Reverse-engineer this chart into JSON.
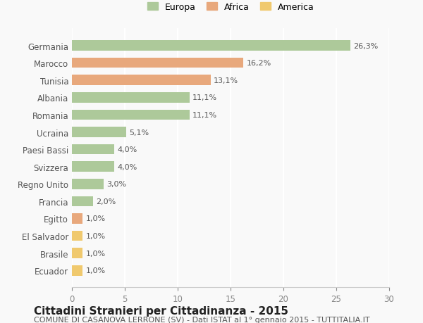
{
  "categories": [
    "Germania",
    "Marocco",
    "Tunisia",
    "Albania",
    "Romania",
    "Ucraina",
    "Paesi Bassi",
    "Svizzera",
    "Regno Unito",
    "Francia",
    "Egitto",
    "El Salvador",
    "Brasile",
    "Ecuador"
  ],
  "values": [
    26.3,
    16.2,
    13.1,
    11.1,
    11.1,
    5.1,
    4.0,
    4.0,
    3.0,
    2.0,
    1.0,
    1.0,
    1.0,
    1.0
  ],
  "labels": [
    "26,3%",
    "16,2%",
    "13,1%",
    "11,1%",
    "11,1%",
    "5,1%",
    "4,0%",
    "4,0%",
    "3,0%",
    "2,0%",
    "1,0%",
    "1,0%",
    "1,0%",
    "1,0%"
  ],
  "continents": [
    "Europa",
    "Africa",
    "Africa",
    "Europa",
    "Europa",
    "Europa",
    "Europa",
    "Europa",
    "Europa",
    "Europa",
    "Africa",
    "America",
    "America",
    "America"
  ],
  "colors": {
    "Europa": "#adc99a",
    "Africa": "#e8a87c",
    "America": "#f0c96e"
  },
  "legend_colors": {
    "Europa": "#adc99a",
    "Africa": "#e8a87c",
    "America": "#f0c96e"
  },
  "xlim": [
    0,
    30
  ],
  "xticks": [
    0,
    5,
    10,
    15,
    20,
    25,
    30
  ],
  "title": "Cittadini Stranieri per Cittadinanza - 2015",
  "subtitle": "COMUNE DI CASANOVA LERRONE (SV) - Dati ISTAT al 1° gennaio 2015 - TUTTITALIA.IT",
  "background_color": "#f9f9f9",
  "grid_color": "#ffffff",
  "title_fontsize": 11,
  "subtitle_fontsize": 8,
  "bar_height": 0.6
}
